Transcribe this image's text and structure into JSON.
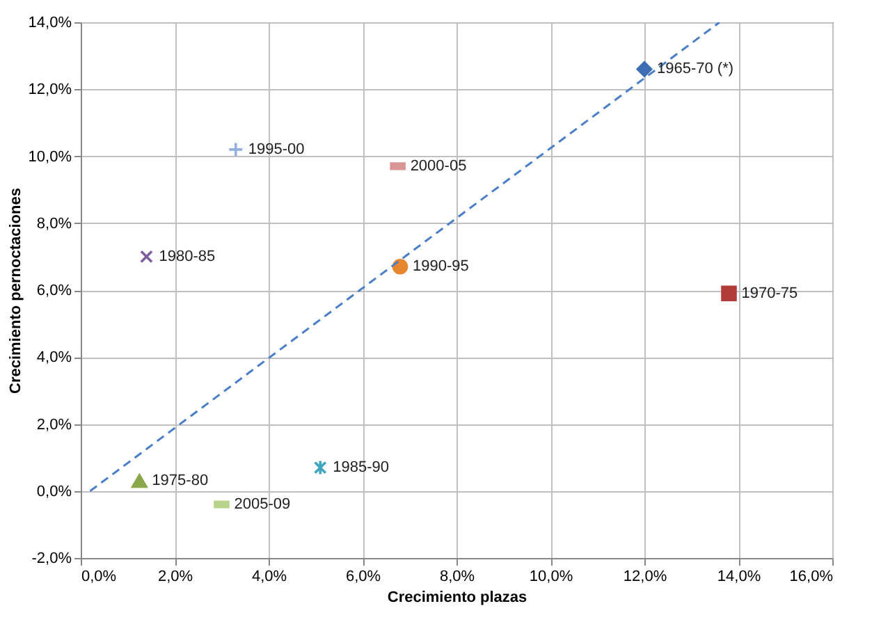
{
  "chart_data": {
    "type": "scatter",
    "xlabel": "Crecimiento plazas",
    "ylabel": "Crecimiento pernoctaciones",
    "grid": true,
    "xlim": [
      0,
      16
    ],
    "ylim": [
      -2,
      14
    ],
    "xticks": [
      {
        "value": 0,
        "label": "0,0%"
      },
      {
        "value": 2,
        "label": "2,0%"
      },
      {
        "value": 4,
        "label": "4,0%"
      },
      {
        "value": 6,
        "label": "6,0%"
      },
      {
        "value": 8,
        "label": "8,0%"
      },
      {
        "value": 10,
        "label": "10,0%"
      },
      {
        "value": 12,
        "label": "12,0%"
      },
      {
        "value": 14,
        "label": "14,0%"
      },
      {
        "value": 16,
        "label": "16,0%"
      }
    ],
    "yticks": [
      {
        "value": -2,
        "label": "-2,0%"
      },
      {
        "value": 0,
        "label": "0,0%"
      },
      {
        "value": 2,
        "label": "2,0%"
      },
      {
        "value": 4,
        "label": "4,0%"
      },
      {
        "value": 6,
        "label": "6,0%"
      },
      {
        "value": 8,
        "label": "8,0%"
      },
      {
        "value": 10,
        "label": "10,0%"
      },
      {
        "value": 12,
        "label": "12,0%"
      },
      {
        "value": 14,
        "label": "14,0%"
      }
    ],
    "series": [
      {
        "name": "1965-70 (*)",
        "color": "#3d6eb4",
        "marker": "diamond",
        "x": [
          12.0
        ],
        "values": [
          12.6
        ]
      },
      {
        "name": "1970-75",
        "color": "#b23c3a",
        "marker": "square",
        "x": [
          13.8
        ],
        "values": [
          5.9
        ]
      },
      {
        "name": "1975-80",
        "color": "#8aa84a",
        "marker": "triangle",
        "x": [
          1.25
        ],
        "values": [
          0.3
        ]
      },
      {
        "name": "1980-85",
        "color": "#7e5ea0",
        "marker": "cross",
        "x": [
          1.4
        ],
        "values": [
          7.0
        ]
      },
      {
        "name": "1985-90",
        "color": "#3fa6c0",
        "x": [
          5.1
        ],
        "values": [
          0.7
        ]
      },
      {
        "name": "1990-95",
        "color": "#e6862e",
        "marker": "circle",
        "x": [
          6.8
        ],
        "values": [
          6.7
        ]
      },
      {
        "name": "1995-00",
        "color": "#8fb0e0",
        "x": [
          3.3
        ],
        "values": [
          10.2
        ]
      },
      {
        "name": "2000-05",
        "color": "#d99694",
        "x": [
          6.75
        ],
        "values": [
          9.7
        ]
      },
      {
        "name": "2005-09",
        "color": "#b8d38a",
        "x": [
          3.0
        ],
        "values": [
          -0.4
        ]
      },
      {
        "type": "line",
        "color": "#4a7fc8",
        "line_style": "dashed",
        "x": [
          0.2,
          13.6
        ],
        "values": [
          0,
          14
        ]
      }
    ]
  }
}
